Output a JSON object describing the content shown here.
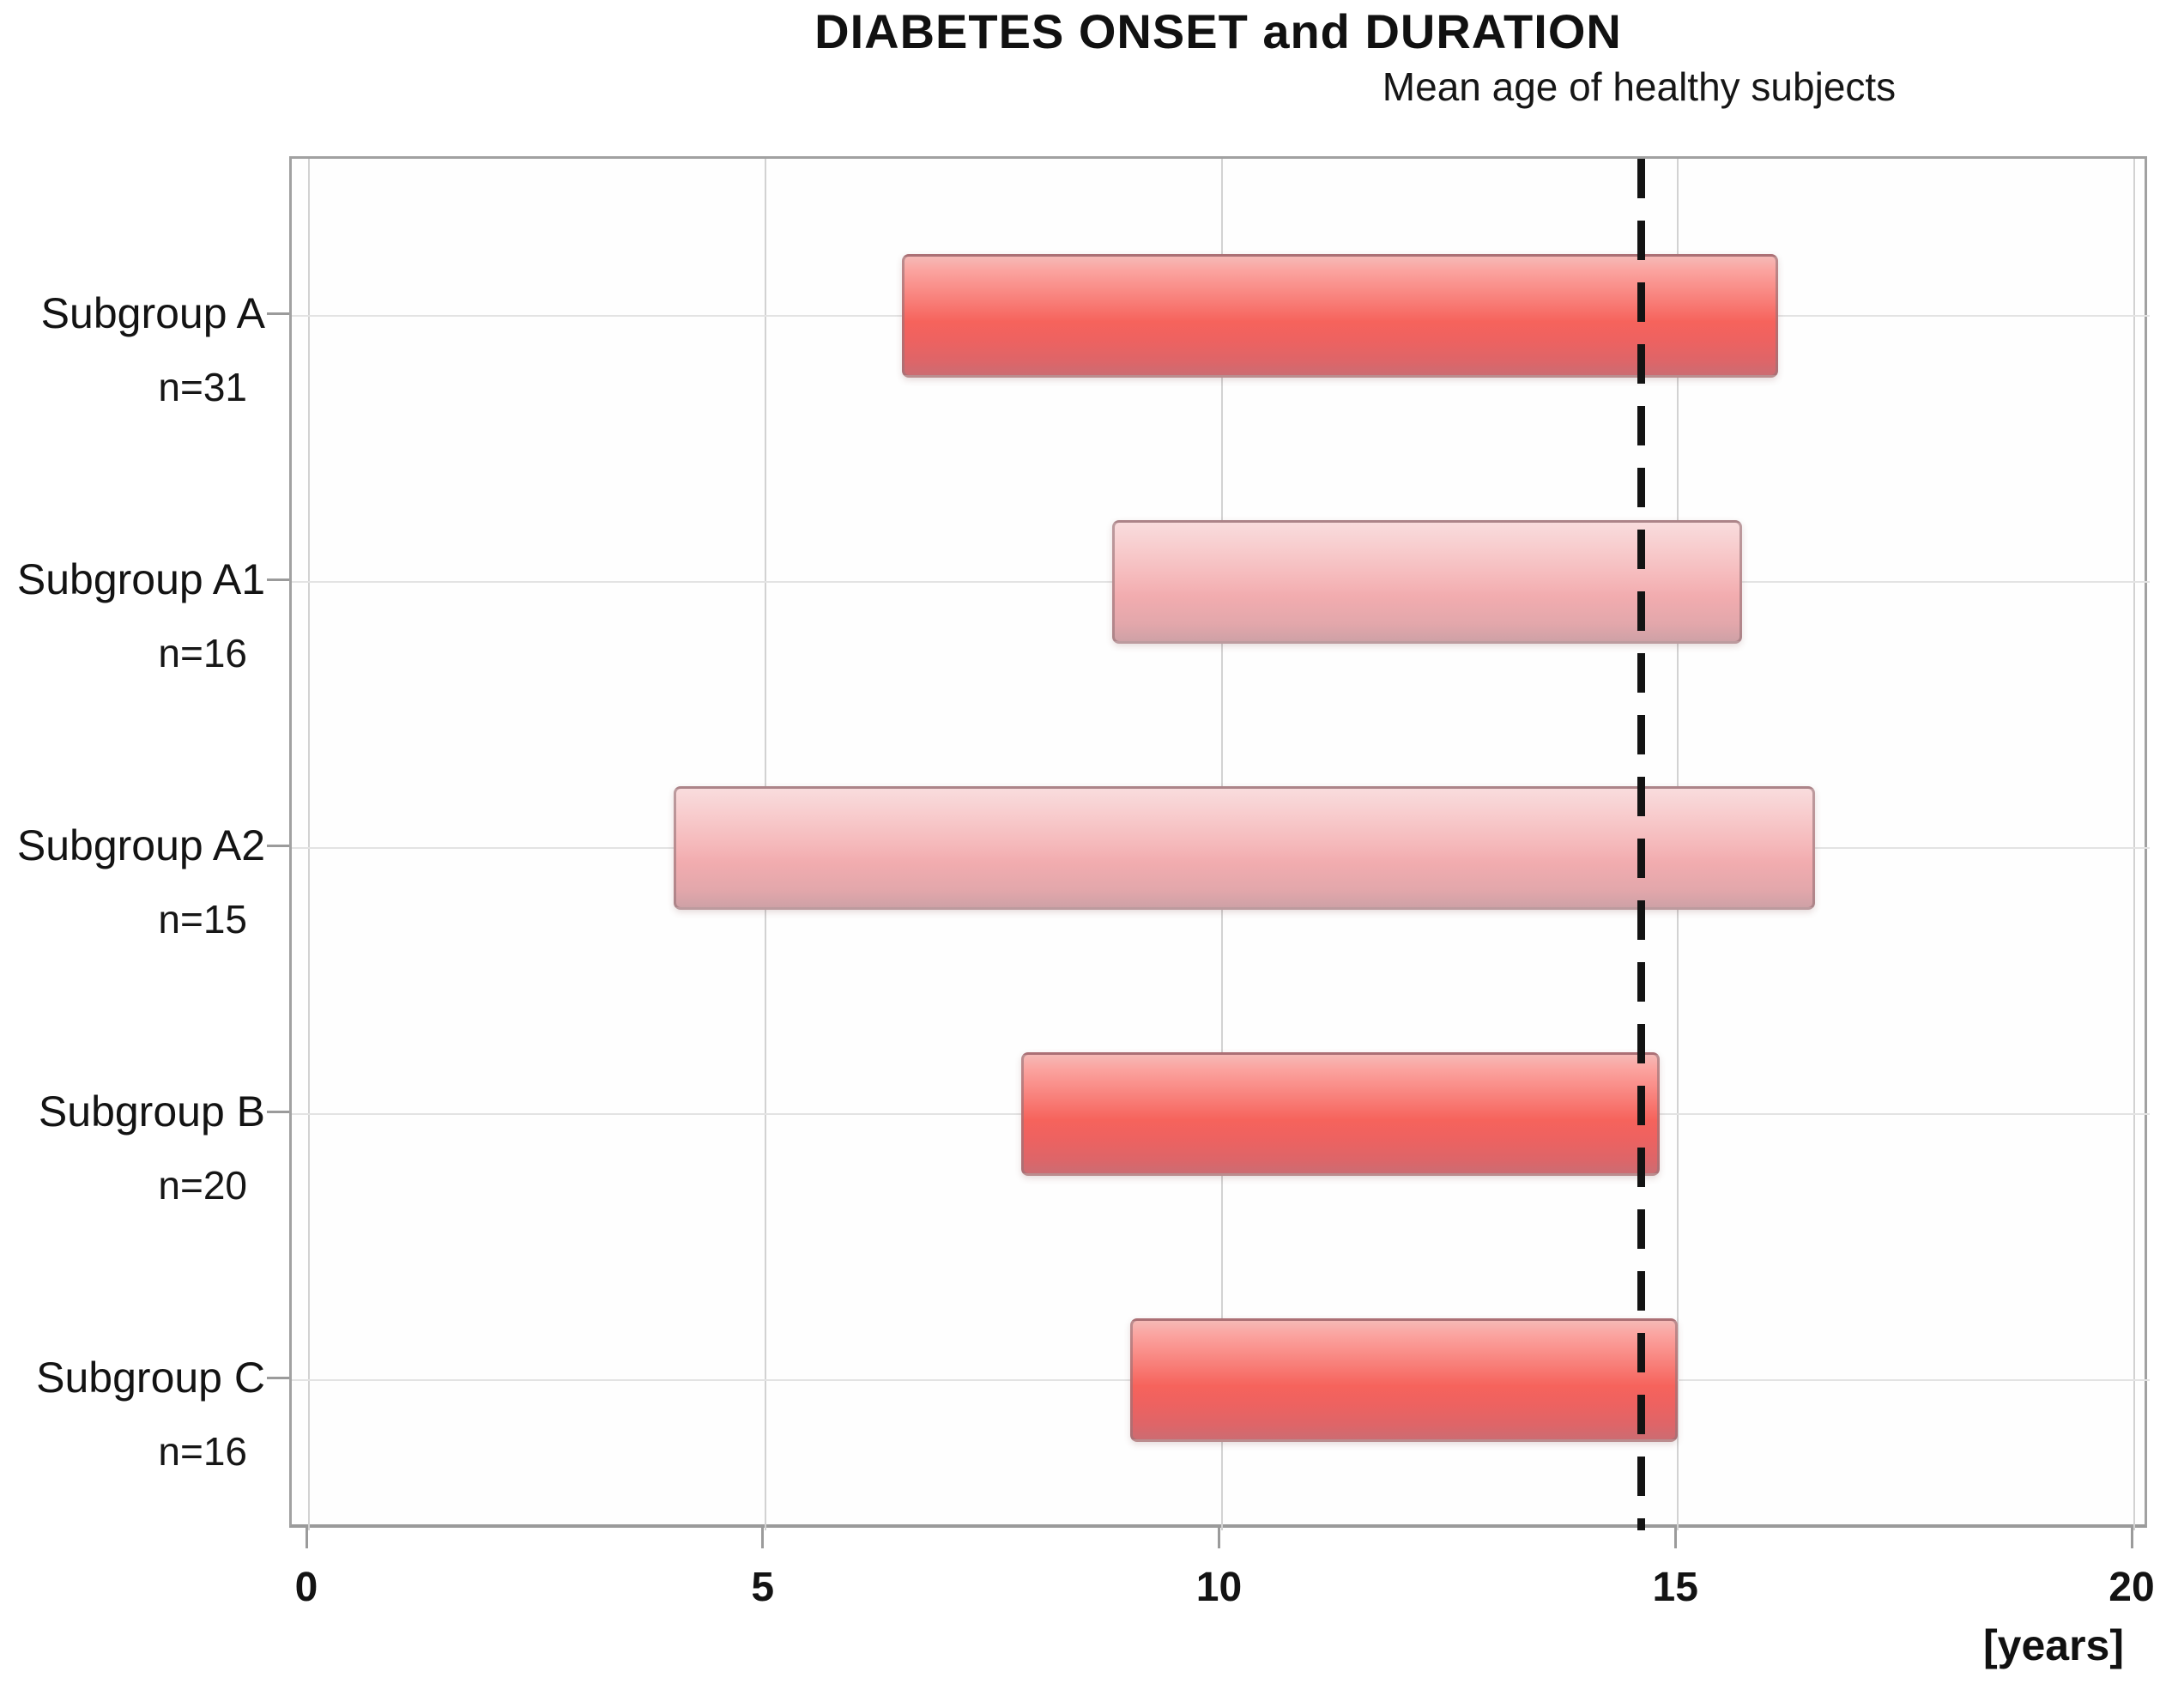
{
  "chart_data": {
    "type": "bar",
    "subtype": "horizontal_range_bars",
    "title": "DIABETES ONSET and DURATION",
    "xlabel": "[years]",
    "x_axis": {
      "min": 0,
      "max": 20,
      "ticks": [
        0,
        5,
        10,
        15,
        20
      ]
    },
    "grid": {
      "vertical_at_ticks": true,
      "horizontal_at_rows": true
    },
    "legend": null,
    "reference_line": {
      "value": 14.6,
      "label": "Mean age of healthy subjects",
      "style": "dashed"
    },
    "categories": [
      {
        "label": "Subgroup A",
        "n_label": "n=31",
        "n": 31,
        "start": 6.5,
        "end": 16.1,
        "shade": "strong"
      },
      {
        "label": "Subgroup A1",
        "n_label": "n=16",
        "n": 16,
        "start": 8.8,
        "end": 15.7,
        "shade": "light"
      },
      {
        "label": "Subgroup A2",
        "n_label": "n=15",
        "n": 15,
        "start": 4.0,
        "end": 16.5,
        "shade": "light"
      },
      {
        "label": "Subgroup B",
        "n_label": "n=20",
        "n": 20,
        "start": 7.8,
        "end": 14.8,
        "shade": "strong"
      },
      {
        "label": "Subgroup C",
        "n_label": "n=16",
        "n": 16,
        "start": 9.0,
        "end": 15.0,
        "shade": "strong"
      }
    ]
  },
  "colors": {
    "bar_strong_mid": "#f6635c",
    "bar_light_mid": "#f2acaf",
    "bar_border": "#96787a",
    "grid_vertical": "#d2d2d2",
    "grid_horizontal": "#e3e3e3",
    "plot_border": "#a1a1a1",
    "tick": "#9b9b9b",
    "refline": "#131313",
    "text": "#151515",
    "background": "#ffffff"
  }
}
